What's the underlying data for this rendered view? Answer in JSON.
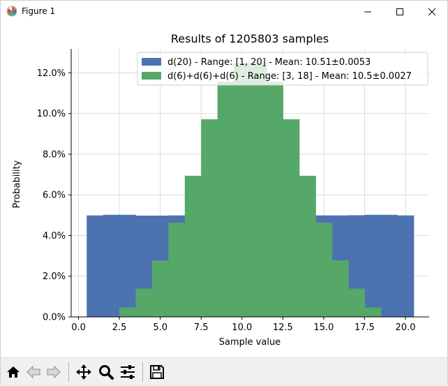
{
  "window": {
    "title": "Figure 1",
    "icons": {
      "app": "matplotlib-logo-icon",
      "minimize": "minimize-icon",
      "maximize": "maximize-icon",
      "close": "close-icon"
    }
  },
  "toolbar": {
    "buttons": [
      {
        "name": "home-button",
        "icon": "home-icon"
      },
      {
        "name": "back-button",
        "icon": "arrow-left-icon"
      },
      {
        "name": "forward-button",
        "icon": "arrow-right-icon"
      },
      {
        "name": "pan-button",
        "icon": "move-arrows-icon"
      },
      {
        "name": "zoom-button",
        "icon": "magnifier-icon"
      },
      {
        "name": "subplots-button",
        "icon": "sliders-icon"
      },
      {
        "name": "save-button",
        "icon": "floppy-disk-icon"
      }
    ]
  },
  "chart_data": {
    "type": "bar",
    "title": "Results of 1205803 samples",
    "xlabel": "Sample value",
    "ylabel": "Probability",
    "xlim": [
      -0.45,
      21.45
    ],
    "ylim": [
      0,
      0.1318
    ],
    "xticks": [
      0,
      2.5,
      5,
      7.5,
      10,
      12.5,
      15,
      17.5,
      20
    ],
    "xtick_labels": [
      "0.0",
      "2.5",
      "5.0",
      "7.5",
      "10.0",
      "12.5",
      "15.0",
      "17.5",
      "20.0"
    ],
    "yticks": [
      0,
      0.02,
      0.04,
      0.06,
      0.08,
      0.1,
      0.12
    ],
    "ytick_labels": [
      "0.0%",
      "2.0%",
      "4.0%",
      "6.0%",
      "8.0%",
      "10.0%",
      "12.0%"
    ],
    "grid": true,
    "legend_position": "top-right",
    "series": [
      {
        "name": "d(20) - Range: [1, 20] - Mean: 10.51±0.0053",
        "color": "#4c72b0",
        "x": [
          1,
          2,
          3,
          4,
          5,
          6,
          7,
          8,
          9,
          10,
          11,
          12,
          13,
          14,
          15,
          16,
          17,
          18,
          19,
          20
        ],
        "values": [
          0.0499,
          0.0502,
          0.0502,
          0.0498,
          0.0498,
          0.0499,
          0.05,
          0.05,
          0.0501,
          0.0499,
          0.05,
          0.05,
          0.0499,
          0.05,
          0.0499,
          0.0499,
          0.05,
          0.0502,
          0.0502,
          0.0499
        ]
      },
      {
        "name": "d(6)+d(6)+d(6) - Range: [3, 18] - Mean: 10.5±0.0027",
        "color": "#55a868",
        "x": [
          3,
          4,
          5,
          6,
          7,
          8,
          9,
          10,
          11,
          12,
          13,
          14,
          15,
          16,
          17,
          18
        ],
        "values": [
          0.0046,
          0.0139,
          0.0278,
          0.0463,
          0.0694,
          0.0972,
          0.1157,
          0.125,
          0.125,
          0.1157,
          0.0972,
          0.0694,
          0.0463,
          0.0278,
          0.0139,
          0.0046
        ]
      }
    ]
  }
}
